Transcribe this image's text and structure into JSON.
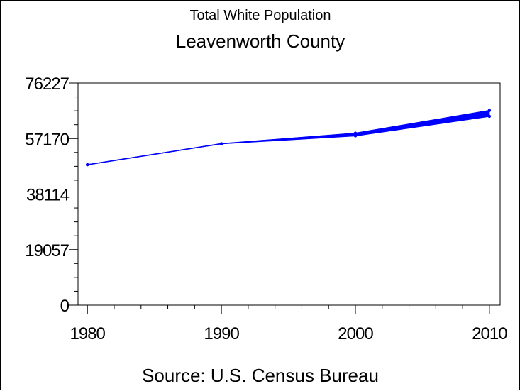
{
  "chart_data": {
    "type": "line",
    "title": "Total White Population",
    "subtitle": "Leavenworth County",
    "footnote": "Source: U.S. Census Bureau",
    "xlabel": "",
    "ylabel": "",
    "x": [
      1980,
      1990,
      2000,
      2010
    ],
    "xlim": [
      1979.3,
      2010.8
    ],
    "ylim": [
      0,
      76227
    ],
    "x_ticks": [
      "1980",
      "1990",
      "2000",
      "2010"
    ],
    "y_ticks": [
      "0",
      "19057",
      "38114",
      "57170",
      "76227"
    ],
    "grid": false,
    "legend": "none",
    "line_color": "#0000ff",
    "series": [
      {
        "values": [
          48200,
          55400,
          58100,
          64800
        ]
      },
      {
        "values": [
          48200,
          55400,
          59000,
          66800
        ]
      }
    ]
  }
}
